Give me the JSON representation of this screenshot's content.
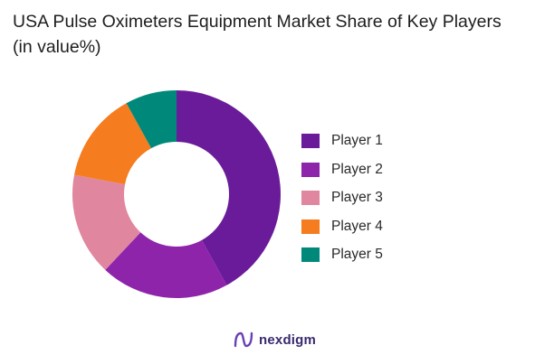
{
  "chart_data": {
    "type": "pie",
    "title": "USA Pulse Oximeters Equipment Market Share of Key Players (in value%)",
    "categories": [
      "Player 1",
      "Player 2",
      "Player 3",
      "Player 4",
      "Player 5"
    ],
    "values": [
      42,
      20,
      16,
      14,
      8
    ],
    "colors": [
      "#6a1b9a",
      "#8e24aa",
      "#e0879f",
      "#f57c1f",
      "#00897b"
    ],
    "donut": true,
    "legend": "right"
  },
  "brand": {
    "name": "nexdigm",
    "icon": "nexdigm-logo-icon"
  }
}
